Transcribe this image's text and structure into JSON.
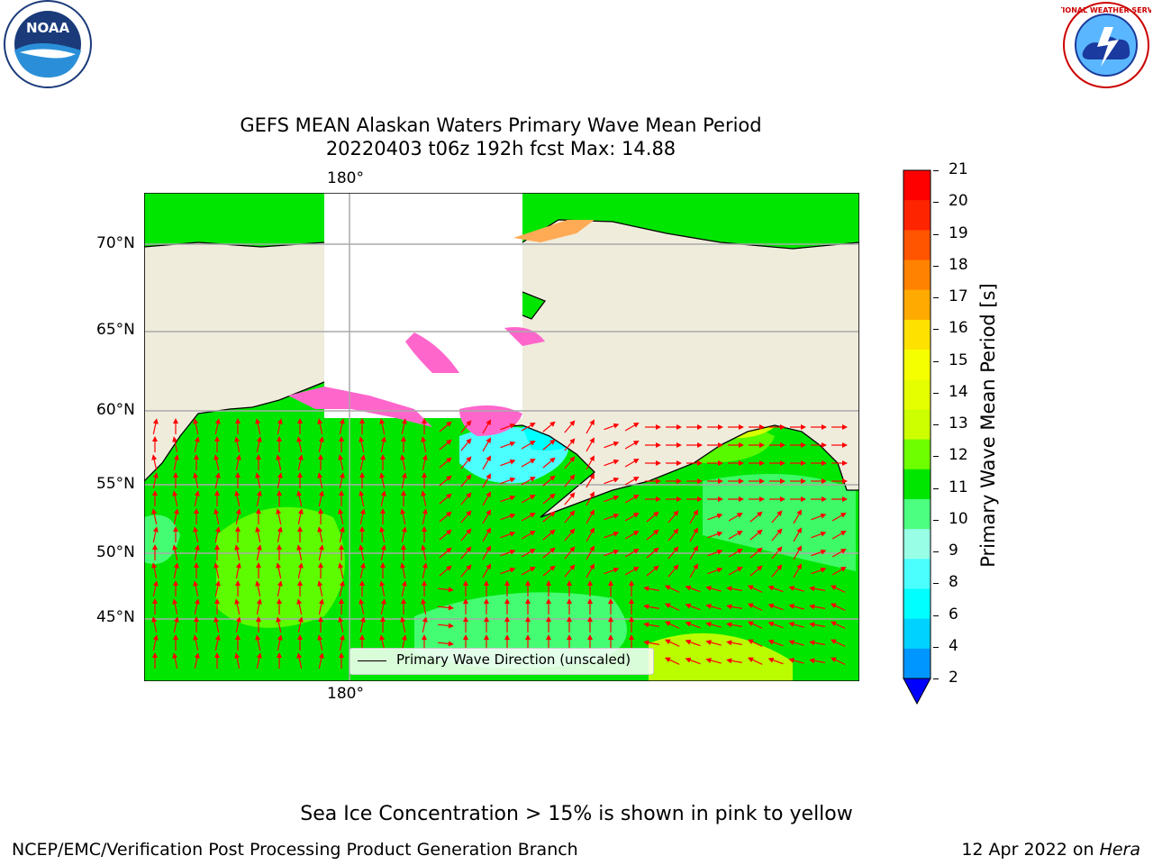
{
  "title": {
    "line1": "GEFS MEAN Alaskan Waters Primary Wave Mean Period",
    "line2": "20220403 t06z 192h fcst   Max: 14.88"
  },
  "map": {
    "lon_label": "180°",
    "lat_labels": [
      "70°N",
      "65°N",
      "60°N",
      "55°N",
      "50°N",
      "45°N"
    ],
    "legend_label": "Primary Wave Direction (unscaled)",
    "colors": {
      "land": "#efecdc",
      "ice_pink": "#ff66cc",
      "ice_orange": "#ffaa55",
      "arrow": "#ff0000"
    }
  },
  "colorbar": {
    "label": "Primary Wave Mean Period [s]",
    "ticks": [
      "21",
      "20",
      "19",
      "18",
      "17",
      "16",
      "15",
      "14",
      "13",
      "12",
      "11",
      "10",
      "9",
      "8",
      "6",
      "4",
      "2"
    ],
    "colors": [
      "#ff0000",
      "#ff2400",
      "#ff5400",
      "#ff8200",
      "#ffaa00",
      "#ffe100",
      "#f5ff00",
      "#e6ff00",
      "#cdff00",
      "#6eff00",
      "#00e600",
      "#4cff80",
      "#98ffe6",
      "#4cffff",
      "#00ffff",
      "#00d2ff",
      "#0096ff",
      "#0000ff"
    ]
  },
  "logos": {
    "left": "NOAA",
    "right": "NATIONAL WEATHER SERVICE"
  },
  "footer": {
    "note": "Sea Ice Concentration > 15% is shown in pink to yellow",
    "left": "NCEP/EMC/Verification Post Processing Product Generation Branch",
    "right_prefix": "12 Apr 2022 on ",
    "right_machine": "Hera"
  }
}
